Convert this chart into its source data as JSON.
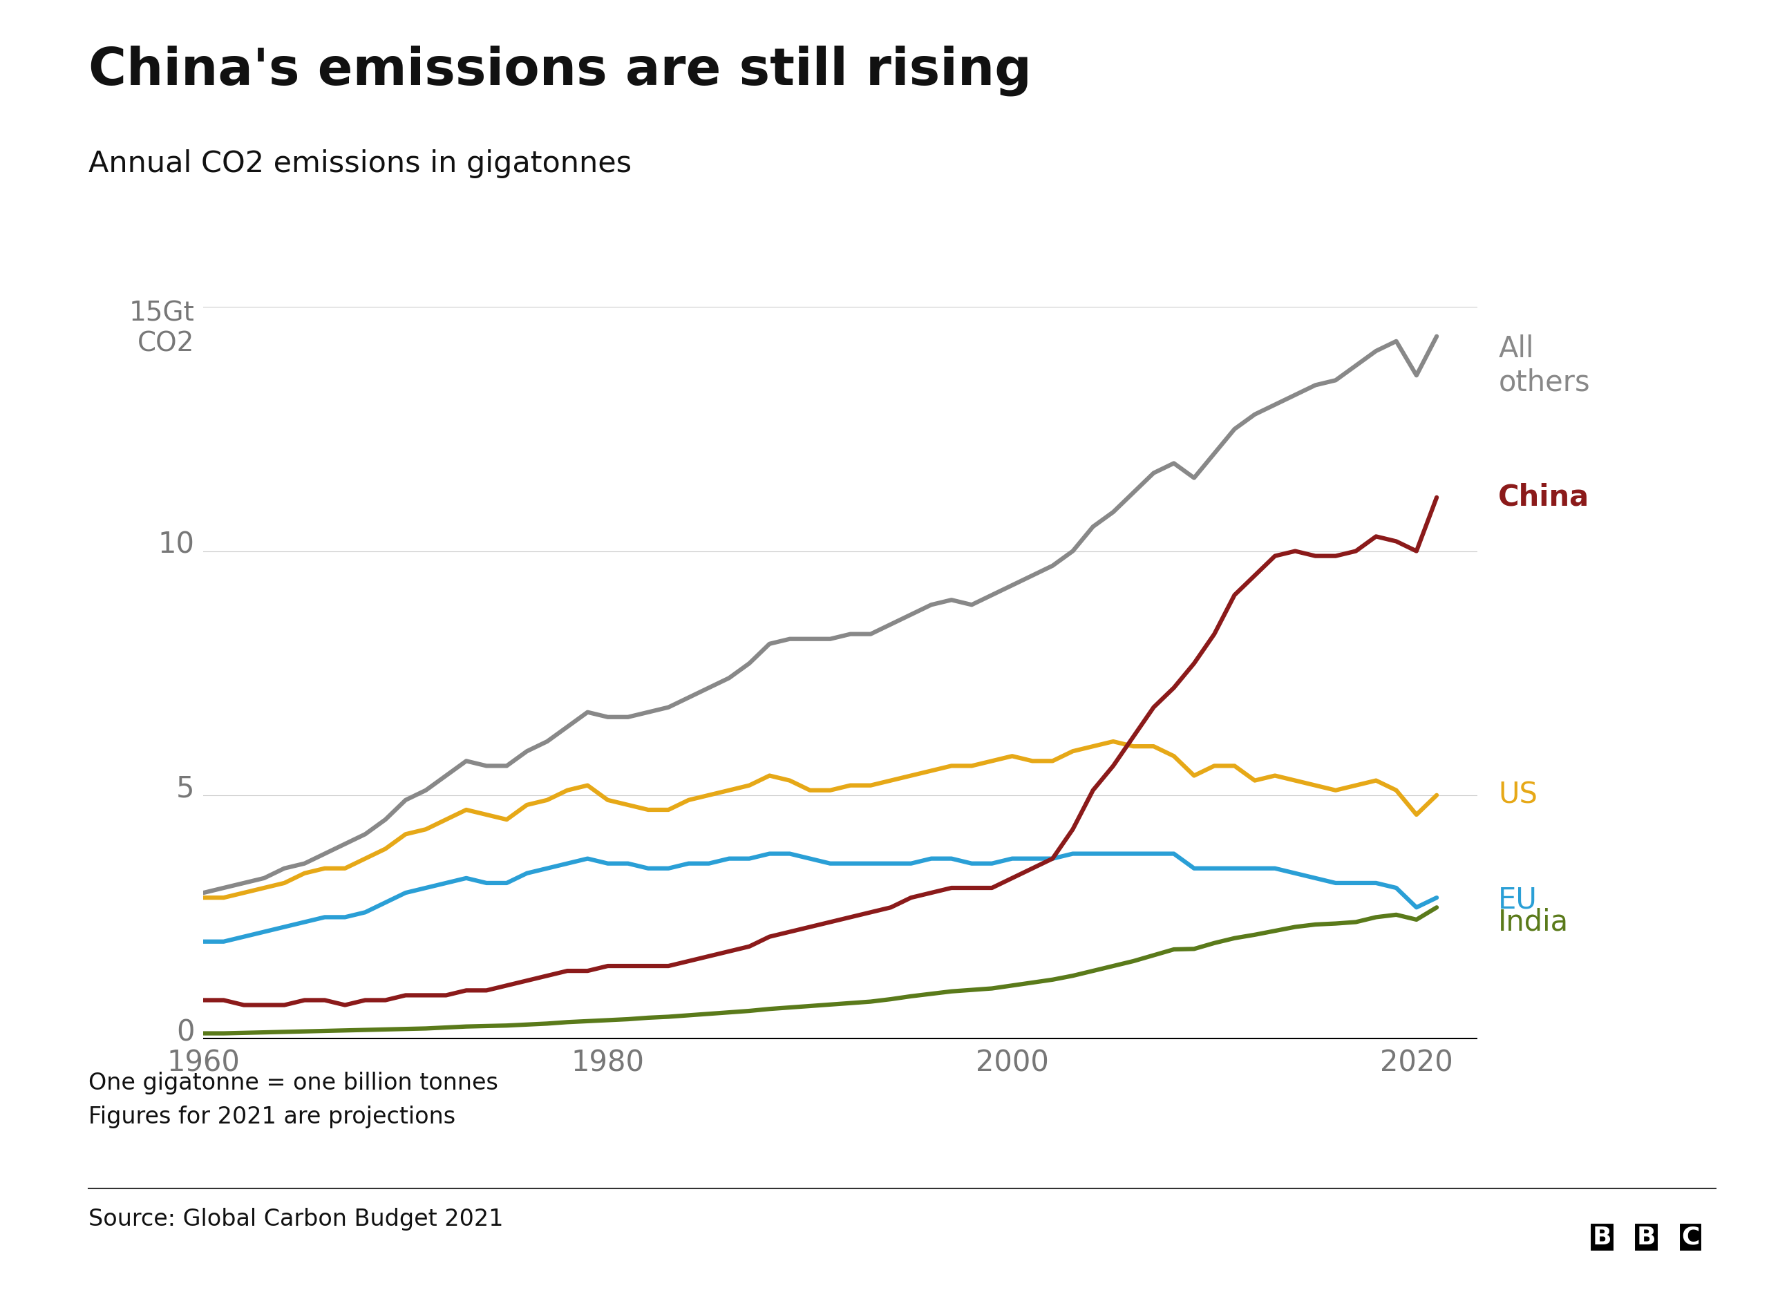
{
  "title": "China's emissions are still rising",
  "subtitle": "Annual CO2 emissions in gigatonnes",
  "footnote1": "One gigatonne = one billion tonnes",
  "footnote2": "Figures for 2021 are projections",
  "source": "Source: Global Carbon Budget 2021",
  "background_color": "#ffffff",
  "title_color": "#111111",
  "subtitle_color": "#111111",
  "axis_label_color": "#777777",
  "grid_color": "#cccccc",
  "series": {
    "All others": {
      "color": "#888888",
      "label_color": "#888888",
      "linewidth": 3.0,
      "label_bold": false
    },
    "China": {
      "color": "#8b1a1a",
      "label_color": "#8b1a1a",
      "linewidth": 3.0,
      "label_bold": true
    },
    "US": {
      "color": "#e6a817",
      "label_color": "#e6a817",
      "linewidth": 3.0,
      "label_bold": false
    },
    "EU": {
      "color": "#2a9fd6",
      "label_color": "#2a9fd6",
      "linewidth": 3.0,
      "label_bold": false
    },
    "India": {
      "color": "#5a7a1a",
      "label_color": "#5a7a1a",
      "linewidth": 3.0,
      "label_bold": false
    }
  },
  "years": [
    1960,
    1961,
    1962,
    1963,
    1964,
    1965,
    1966,
    1967,
    1968,
    1969,
    1970,
    1971,
    1972,
    1973,
    1974,
    1975,
    1976,
    1977,
    1978,
    1979,
    1980,
    1981,
    1982,
    1983,
    1984,
    1985,
    1986,
    1987,
    1988,
    1989,
    1990,
    1991,
    1992,
    1993,
    1994,
    1995,
    1996,
    1997,
    1998,
    1999,
    2000,
    2001,
    2002,
    2003,
    2004,
    2005,
    2006,
    2007,
    2008,
    2009,
    2010,
    2011,
    2012,
    2013,
    2014,
    2015,
    2016,
    2017,
    2018,
    2019,
    2020,
    2021
  ],
  "All others": [
    3.0,
    3.1,
    3.2,
    3.3,
    3.5,
    3.6,
    3.8,
    4.0,
    4.2,
    4.5,
    4.9,
    5.1,
    5.4,
    5.7,
    5.6,
    5.6,
    5.9,
    6.1,
    6.4,
    6.7,
    6.6,
    6.6,
    6.7,
    6.8,
    7.0,
    7.2,
    7.4,
    7.7,
    8.1,
    8.2,
    8.2,
    8.2,
    8.3,
    8.3,
    8.5,
    8.7,
    8.9,
    9.0,
    8.9,
    9.1,
    9.3,
    9.5,
    9.7,
    10.0,
    10.5,
    10.8,
    11.2,
    11.6,
    11.8,
    11.5,
    12.0,
    12.5,
    12.8,
    13.0,
    13.2,
    13.4,
    13.5,
    13.8,
    14.1,
    14.3,
    13.6,
    14.4
  ],
  "China": [
    0.8,
    0.8,
    0.7,
    0.7,
    0.7,
    0.8,
    0.8,
    0.7,
    0.8,
    0.8,
    0.9,
    0.9,
    0.9,
    1.0,
    1.0,
    1.1,
    1.2,
    1.3,
    1.4,
    1.4,
    1.5,
    1.5,
    1.5,
    1.5,
    1.6,
    1.7,
    1.8,
    1.9,
    2.1,
    2.2,
    2.3,
    2.4,
    2.5,
    2.6,
    2.7,
    2.9,
    3.0,
    3.1,
    3.1,
    3.1,
    3.3,
    3.5,
    3.7,
    4.3,
    5.1,
    5.6,
    6.2,
    6.8,
    7.2,
    7.7,
    8.3,
    9.1,
    9.5,
    9.9,
    10.0,
    9.9,
    9.9,
    10.0,
    10.3,
    10.2,
    10.0,
    11.1
  ],
  "US": [
    2.9,
    2.9,
    3.0,
    3.1,
    3.2,
    3.4,
    3.5,
    3.5,
    3.7,
    3.9,
    4.2,
    4.3,
    4.5,
    4.7,
    4.6,
    4.5,
    4.8,
    4.9,
    5.1,
    5.2,
    4.9,
    4.8,
    4.7,
    4.7,
    4.9,
    5.0,
    5.1,
    5.2,
    5.4,
    5.3,
    5.1,
    5.1,
    5.2,
    5.2,
    5.3,
    5.4,
    5.5,
    5.6,
    5.6,
    5.7,
    5.8,
    5.7,
    5.7,
    5.9,
    6.0,
    6.1,
    6.0,
    6.0,
    5.8,
    5.4,
    5.6,
    5.6,
    5.3,
    5.4,
    5.3,
    5.2,
    5.1,
    5.2,
    5.3,
    5.1,
    4.6,
    5.0
  ],
  "EU": [
    2.0,
    2.0,
    2.1,
    2.2,
    2.3,
    2.4,
    2.5,
    2.5,
    2.6,
    2.8,
    3.0,
    3.1,
    3.2,
    3.3,
    3.2,
    3.2,
    3.4,
    3.5,
    3.6,
    3.7,
    3.6,
    3.6,
    3.5,
    3.5,
    3.6,
    3.6,
    3.7,
    3.7,
    3.8,
    3.8,
    3.7,
    3.6,
    3.6,
    3.6,
    3.6,
    3.6,
    3.7,
    3.7,
    3.6,
    3.6,
    3.7,
    3.7,
    3.7,
    3.8,
    3.8,
    3.8,
    3.8,
    3.8,
    3.8,
    3.5,
    3.5,
    3.5,
    3.5,
    3.5,
    3.4,
    3.3,
    3.2,
    3.2,
    3.2,
    3.1,
    2.7,
    2.9
  ],
  "India": [
    0.12,
    0.12,
    0.13,
    0.14,
    0.15,
    0.16,
    0.17,
    0.18,
    0.19,
    0.2,
    0.21,
    0.22,
    0.24,
    0.26,
    0.27,
    0.28,
    0.3,
    0.32,
    0.35,
    0.37,
    0.39,
    0.41,
    0.44,
    0.46,
    0.49,
    0.52,
    0.55,
    0.58,
    0.62,
    0.65,
    0.68,
    0.71,
    0.74,
    0.77,
    0.82,
    0.88,
    0.93,
    0.98,
    1.01,
    1.04,
    1.1,
    1.16,
    1.22,
    1.3,
    1.4,
    1.5,
    1.6,
    1.72,
    1.84,
    1.85,
    1.97,
    2.07,
    2.14,
    2.22,
    2.3,
    2.35,
    2.37,
    2.4,
    2.5,
    2.55,
    2.45,
    2.7
  ],
  "xlim": [
    1960,
    2023
  ],
  "ylim": [
    0,
    16.5
  ],
  "yticks": [
    0,
    5,
    10,
    15
  ],
  "xticks": [
    1960,
    1980,
    2000,
    2020
  ],
  "right_labels": {
    "All others": {
      "y": 13.8,
      "text": "All\nothers"
    },
    "China": {
      "y": 11.1,
      "text": "China"
    },
    "US": {
      "y": 5.0,
      "text": "US"
    },
    "EU": {
      "y": 2.85,
      "text": "EU"
    },
    "India": {
      "y": 2.4,
      "text": "India"
    }
  }
}
